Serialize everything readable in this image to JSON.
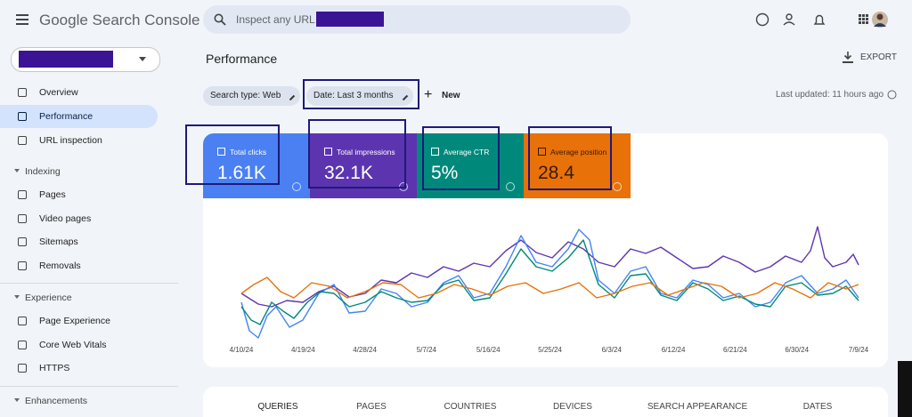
{
  "header": {
    "logo": "Google Search Console",
    "search_placeholder": "Inspect any URL in"
  },
  "sidebar": {
    "items": [
      {
        "label": "Overview",
        "top": true
      },
      {
        "label": "Performance",
        "active": true
      },
      {
        "label": "URL inspection"
      }
    ],
    "sections": [
      {
        "title": "Indexing",
        "items": [
          "Pages",
          "Video pages",
          "Sitemaps",
          "Removals"
        ]
      },
      {
        "title": "Experience",
        "items": [
          "Page Experience",
          "Core Web Vitals",
          "HTTPS"
        ]
      },
      {
        "title": "Enhancements",
        "items": []
      }
    ]
  },
  "page": {
    "title": "Performance",
    "export": "EXPORT",
    "filters": [
      "Search type: Web",
      "Date: Last 3 months"
    ],
    "new": "New",
    "last_updated": "Last updated: 11 hours ago"
  },
  "metrics": [
    {
      "label": "Total clicks",
      "value": "1.61K",
      "color": "#4a80f2"
    },
    {
      "label": "Total impressions",
      "value": "32.1K",
      "color": "#5d34b0"
    },
    {
      "label": "Average CTR",
      "value": "5%",
      "color": "#00897b"
    },
    {
      "label": "Average position",
      "value": "28.4",
      "color": "#e8710a"
    }
  ],
  "chart_dates": [
    "4/10/24",
    "4/19/24",
    "4/28/24",
    "5/7/24",
    "5/16/24",
    "5/25/24",
    "6/3/24",
    "6/12/24",
    "6/21/24",
    "6/30/24",
    "7/9/24"
  ],
  "tabs": [
    "QUERIES",
    "PAGES",
    "COUNTRIES",
    "DEVICES",
    "SEARCH APPEARANCE",
    "DATES"
  ]
}
